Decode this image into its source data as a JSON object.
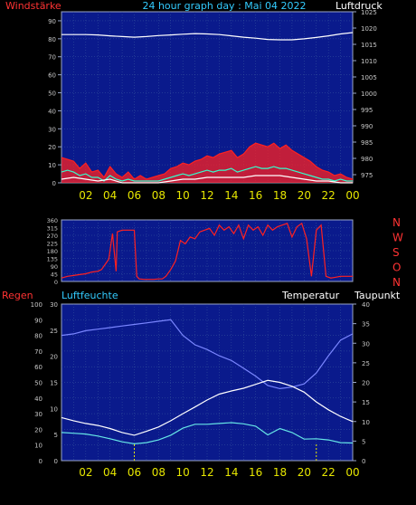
{
  "header": {
    "left_label": "Windstärke",
    "title": "24 hour graph day : Mai 04 2022",
    "right_label": "Luftdruck"
  },
  "colors": {
    "background": "#000000",
    "plot_bg": "#0a1a8c",
    "grid": "#3a5aa0",
    "border": "#9aa6c8",
    "label_red": "#ff3333",
    "label_cyan": "#33ccff",
    "label_white": "#ffffff",
    "hour_yellow": "#e6e600",
    "tick_text": "#c8c8c8"
  },
  "time_axis": {
    "hour_labels": [
      "02",
      "04",
      "06",
      "08",
      "10",
      "12",
      "14",
      "16",
      "18",
      "20",
      "22",
      "00"
    ]
  },
  "chart_data": [
    {
      "type": "line",
      "panel": "wind-pressure",
      "left_axis_label": "Windstärke",
      "right_axis_label": "Luftdruck",
      "left_ylim": [
        0,
        95
      ],
      "left_ticks": [
        0,
        10,
        20,
        30,
        40,
        50,
        60,
        70,
        80,
        90
      ],
      "right_ylim": [
        972.5,
        1025
      ],
      "right_ticks": [
        975,
        980,
        985,
        990,
        995,
        1000,
        1005,
        1010,
        1015,
        1020,
        1025
      ],
      "xlim": [
        0,
        24
      ],
      "series": [
        {
          "key": "pressure",
          "axis": "right",
          "color": "#ffffff",
          "x": [
            0,
            1,
            2,
            3,
            4,
            5,
            6,
            7,
            8,
            9,
            10,
            11,
            12,
            13,
            14,
            15,
            16,
            17,
            18,
            19,
            20,
            21,
            22,
            23,
            24
          ],
          "values": [
            1018.0,
            1018.0,
            1018.0,
            1017.9,
            1017.6,
            1017.4,
            1017.2,
            1017.4,
            1017.7,
            1017.9,
            1018.1,
            1018.3,
            1018.2,
            1018.0,
            1017.6,
            1017.2,
            1016.9,
            1016.5,
            1016.4,
            1016.4,
            1016.7,
            1017.1,
            1017.6,
            1018.2,
            1018.6
          ]
        },
        {
          "key": "gust",
          "axis": "left",
          "color": "#ff2020",
          "fill": true,
          "x": [
            0,
            0.5,
            1,
            1.5,
            2,
            2.5,
            3,
            3.5,
            4,
            4.5,
            5,
            5.5,
            6,
            6.5,
            7,
            7.5,
            8,
            8.5,
            9,
            9.5,
            10,
            10.5,
            11,
            11.5,
            12,
            12.5,
            13,
            13.5,
            14,
            14.5,
            15,
            15.5,
            16,
            16.5,
            17,
            17.5,
            18,
            18.5,
            19,
            19.5,
            20,
            20.5,
            21,
            21.5,
            22,
            22.5,
            23,
            23.5,
            24
          ],
          "values": [
            14,
            13,
            12,
            8,
            11,
            6,
            7,
            3,
            9,
            5,
            3,
            6,
            2,
            4,
            2,
            3,
            4,
            5,
            8,
            9,
            11,
            10,
            12,
            13,
            15,
            14,
            16,
            17,
            18,
            14,
            16,
            20,
            22,
            21,
            20,
            22,
            19,
            21,
            18,
            16,
            14,
            12,
            9,
            7,
            6,
            4,
            5,
            3,
            2
          ]
        },
        {
          "key": "wind",
          "axis": "left",
          "color": "#33ffcc",
          "x": [
            0,
            0.5,
            1,
            1.5,
            2,
            2.5,
            3,
            3.5,
            4,
            4.5,
            5,
            5.5,
            6,
            6.5,
            7,
            7.5,
            8,
            8.5,
            9,
            9.5,
            10,
            10.5,
            11,
            11.5,
            12,
            12.5,
            13,
            13.5,
            14,
            14.5,
            15,
            15.5,
            16,
            16.5,
            17,
            17.5,
            18,
            18.5,
            19,
            19.5,
            20,
            20.5,
            21,
            21.5,
            22,
            22.5,
            23,
            23.5,
            24
          ],
          "values": [
            6,
            7,
            6,
            4,
            5,
            3,
            3,
            1,
            4,
            2,
            1,
            2,
            1,
            1,
            1,
            1,
            1,
            2,
            3,
            4,
            5,
            4,
            5,
            6,
            7,
            6,
            7,
            7,
            8,
            6,
            7,
            8,
            9,
            8,
            8,
            9,
            8,
            8,
            7,
            6,
            5,
            4,
            3,
            2,
            2,
            1,
            2,
            1,
            1
          ]
        },
        {
          "key": "wind_calm",
          "axis": "left",
          "color": "#ffffff",
          "x": [
            0,
            1,
            2,
            3,
            4,
            5,
            6,
            7,
            8,
            9,
            10,
            11,
            12,
            13,
            14,
            15,
            16,
            17,
            18,
            19,
            20,
            21,
            22,
            23,
            24
          ],
          "values": [
            2,
            3,
            2,
            1,
            2,
            0,
            0,
            0,
            0,
            1,
            2,
            2,
            3,
            3,
            3,
            3,
            4,
            4,
            4,
            3,
            2,
            1,
            1,
            0,
            0
          ]
        }
      ]
    },
    {
      "type": "line",
      "panel": "wind-direction",
      "left_ticks": [
        0,
        45,
        90,
        135,
        180,
        225,
        270,
        315,
        360
      ],
      "right_tick_labels": [
        "N",
        "W",
        "S",
        "O",
        "N"
      ],
      "ylim": [
        0,
        360
      ],
      "xlim": [
        0,
        24
      ],
      "series": [
        {
          "key": "direction",
          "color": "#ff2020",
          "x": [
            0,
            0.5,
            1,
            1.5,
            2,
            2.5,
            3,
            3.3,
            3.6,
            3.9,
            4.2,
            4.5,
            4.6,
            5,
            5.5,
            6,
            6.2,
            6.4,
            6.8,
            7.2,
            7.6,
            8,
            8.3,
            8.6,
            9,
            9.4,
            9.8,
            10.2,
            10.6,
            11,
            11.4,
            11.8,
            12.2,
            12.6,
            13,
            13.4,
            13.8,
            14.2,
            14.6,
            15,
            15.4,
            15.8,
            16.2,
            16.6,
            17,
            17.4,
            17.8,
            18.2,
            18.6,
            19,
            19.4,
            19.8,
            20.2,
            20.6,
            21,
            21.4,
            21.8,
            22.2,
            22.6,
            23,
            23.4,
            23.8,
            24
          ],
          "values": [
            20,
            30,
            35,
            40,
            45,
            55,
            60,
            70,
            100,
            130,
            280,
            60,
            290,
            300,
            300,
            300,
            30,
            15,
            12,
            12,
            12,
            15,
            15,
            30,
            70,
            120,
            240,
            220,
            260,
            250,
            290,
            300,
            310,
            270,
            330,
            300,
            320,
            280,
            330,
            250,
            330,
            300,
            320,
            270,
            330,
            300,
            320,
            330,
            340,
            260,
            320,
            340,
            250,
            30,
            300,
            330,
            30,
            20,
            25,
            30,
            30,
            30,
            30
          ]
        }
      ]
    },
    {
      "type": "line",
      "panel": "humidity-temperature",
      "left_labels": [
        "Regen",
        "Luftfeuchte"
      ],
      "right_labels": [
        "Temperatur",
        "Taupunkt"
      ],
      "rain_ticks": [
        0,
        10,
        20,
        30,
        40,
        50,
        60,
        70,
        80,
        90,
        100
      ],
      "humidity_ylim": [
        0,
        30
      ],
      "humidity_ticks": [
        0,
        5,
        10,
        15,
        20,
        25,
        30
      ],
      "temp_ylim": [
        0,
        40
      ],
      "temp_ticks": [
        0,
        5,
        10,
        15,
        20,
        25,
        30,
        35,
        40
      ],
      "xlim": [
        0,
        24
      ],
      "series": [
        {
          "key": "humidity",
          "axis": "rain",
          "color": "#7a86ff",
          "x": [
            0,
            1,
            2,
            3,
            4,
            5,
            6,
            7,
            8,
            9,
            10,
            11,
            12,
            13,
            14,
            15,
            16,
            17,
            18,
            19,
            20,
            21,
            22,
            23,
            24
          ],
          "values": [
            80,
            81,
            83,
            84,
            85,
            86,
            87,
            88,
            89,
            90,
            80,
            74,
            71,
            67,
            64,
            59,
            54,
            48,
            46,
            47,
            49,
            56,
            67,
            77,
            81
          ]
        },
        {
          "key": "temperature",
          "axis": "temp",
          "color": "#ffffff",
          "x": [
            0,
            1,
            2,
            3,
            4,
            5,
            6,
            7,
            8,
            9,
            10,
            11,
            12,
            13,
            14,
            15,
            16,
            17,
            18,
            19,
            20,
            21,
            22,
            23,
            24
          ],
          "values": [
            11,
            10.2,
            9.5,
            9,
            8.2,
            7.2,
            6.5,
            7.5,
            8.6,
            10.2,
            12,
            13.7,
            15.5,
            17,
            17.8,
            18.5,
            19.5,
            20.5,
            20,
            19,
            17.5,
            15,
            13,
            11.3,
            10
          ]
        },
        {
          "key": "dewpoint",
          "axis": "temp",
          "color": "#66e6e6",
          "x": [
            0,
            1,
            2,
            3,
            4,
            5,
            6,
            7,
            8,
            9,
            10,
            11,
            12,
            13,
            14,
            15,
            16,
            17,
            18,
            19,
            20,
            21,
            22,
            23,
            24
          ],
          "values": [
            7.2,
            7,
            6.8,
            6.3,
            5.6,
            4.8,
            4.3,
            4.6,
            5.3,
            6.5,
            8.3,
            9.3,
            9.3,
            9.5,
            9.7,
            9.4,
            8.8,
            6.6,
            8.2,
            7.2,
            5.5,
            5.6,
            5.3,
            4.6,
            4.5
          ]
        }
      ]
    }
  ]
}
